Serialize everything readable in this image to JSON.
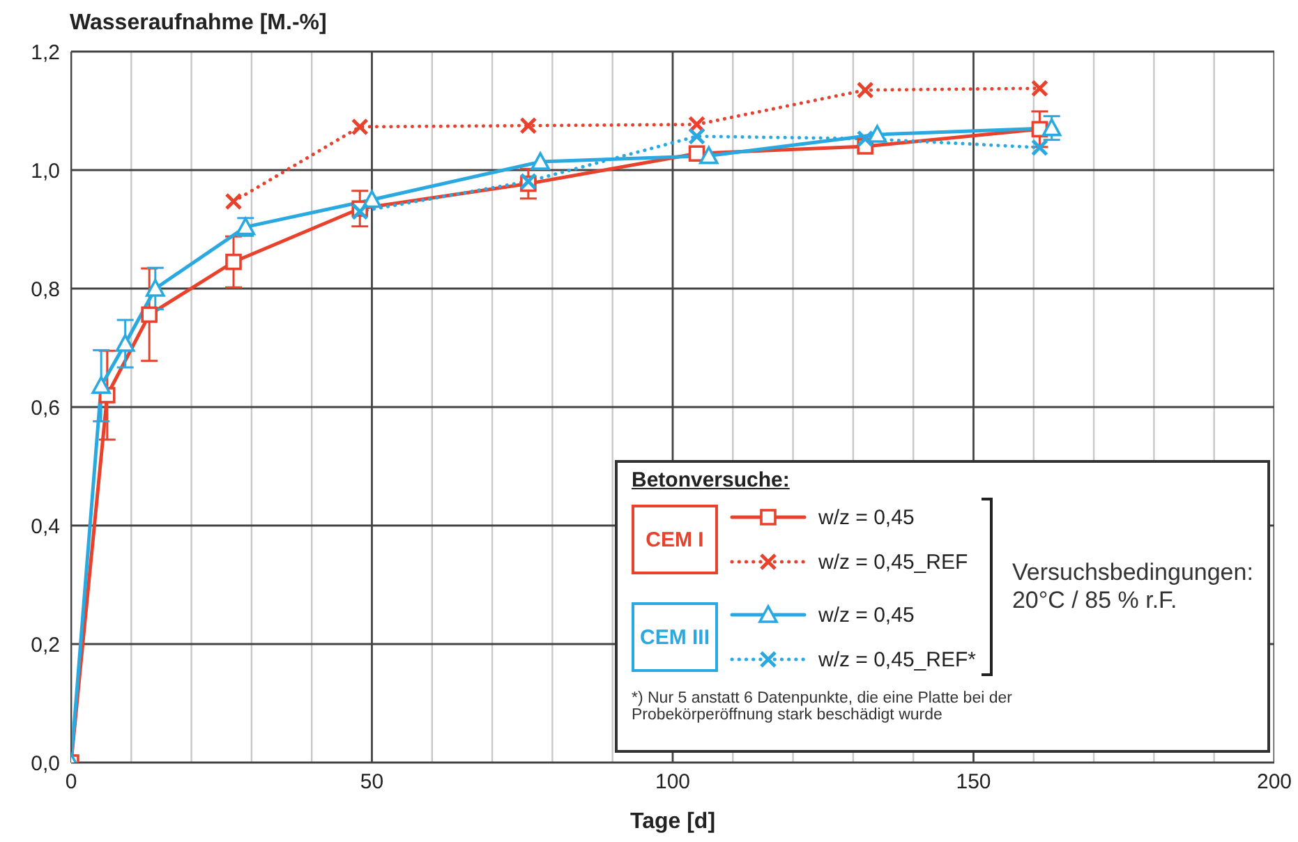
{
  "chart_data": {
    "type": "line",
    "ylabel": "Wasseraufnahme [M.-%]",
    "xlabel": "Tage [d]",
    "legend_title": "Betonversuche:",
    "xlim": [
      0,
      200
    ],
    "xticks": [
      0,
      {
        "value": 10,
        "label": null
      },
      {
        "value": 20,
        "label": null
      },
      {
        "value": 30,
        "label": null
      },
      {
        "value": 40,
        "label": null
      },
      50,
      {
        "value": 60,
        "label": null
      },
      {
        "value": 70,
        "label": null
      },
      {
        "value": 80,
        "label": null
      },
      {
        "value": 90,
        "label": null
      },
      100,
      {
        "value": 110,
        "label": null
      },
      {
        "value": 120,
        "label": null
      },
      {
        "value": 130,
        "label": null
      },
      {
        "value": 140,
        "label": null
      },
      150,
      {
        "value": 160,
        "label": null
      },
      {
        "value": 170,
        "label": null
      },
      {
        "value": 180,
        "label": null
      },
      {
        "value": 190,
        "label": null
      },
      200
    ],
    "ylim": [
      0,
      1.2
    ],
    "yticks": [
      {
        "value": 0,
        "label": "0,0"
      },
      {
        "value": 0.2,
        "label": "0,2"
      },
      {
        "value": 0.4,
        "label": "0,4"
      },
      {
        "value": 0.6,
        "label": "0,6"
      },
      {
        "value": 0.8,
        "label": "0,8"
      },
      {
        "value": 1.0,
        "label": "1,0"
      },
      {
        "value": 1.2,
        "label": "1,2"
      }
    ],
    "grid": true,
    "legend": "bottom right",
    "series": [
      {
        "name": "w/z = 0,45",
        "color": "#e8412c",
        "marker": "square",
        "line_style": "solid",
        "x": [
          0,
          6,
          13,
          27,
          48,
          76,
          104,
          132,
          161
        ],
        "values": [
          0,
          0.62,
          0.756,
          0.845,
          0.935,
          0.977,
          1.028,
          1.04,
          1.069
        ],
        "errors": [
          null,
          0.075,
          0.078,
          0.043,
          0.03,
          0.025,
          null,
          null,
          0.03
        ]
      },
      {
        "name": "w/z = 0,45_REF",
        "color": "#e8412c",
        "marker": "cross",
        "line_style": "dotted",
        "x": [
          27,
          48,
          76,
          104,
          132,
          161
        ],
        "values": [
          0.947,
          1.073,
          1.075,
          1.077,
          1.135,
          1.138
        ]
      },
      {
        "name": "w/z = 0,45",
        "color": "#29a9e0",
        "marker": "triangle",
        "line_style": "solid",
        "x": [
          0,
          5,
          9,
          14,
          29,
          50,
          78,
          106,
          134,
          163
        ],
        "values": [
          0,
          0.636,
          0.707,
          0.8,
          0.904,
          0.95,
          1.014,
          1.024,
          1.06,
          1.071
        ],
        "errors": [
          null,
          0.06,
          0.04,
          0.035,
          0.015,
          null,
          null,
          null,
          null,
          0.02
        ]
      },
      {
        "name": "w/z = 0,45_REF*",
        "color": "#29a9e0",
        "marker": "cross",
        "line_style": "dotted",
        "x": [
          48,
          76,
          104,
          132,
          161
        ],
        "values": [
          0.93,
          0.981,
          1.057,
          1.053,
          1.038
        ]
      }
    ],
    "annotations": [
      "CEM I",
      "CEM III",
      "Versuchsbedingungen:\n20°C / 85 % r.F.",
      "*) Nur 5 anstatt 6 Datenpunkte, die eine Platte bei der\nProbekörperöffnung stark beschädigt wurde"
    ]
  }
}
